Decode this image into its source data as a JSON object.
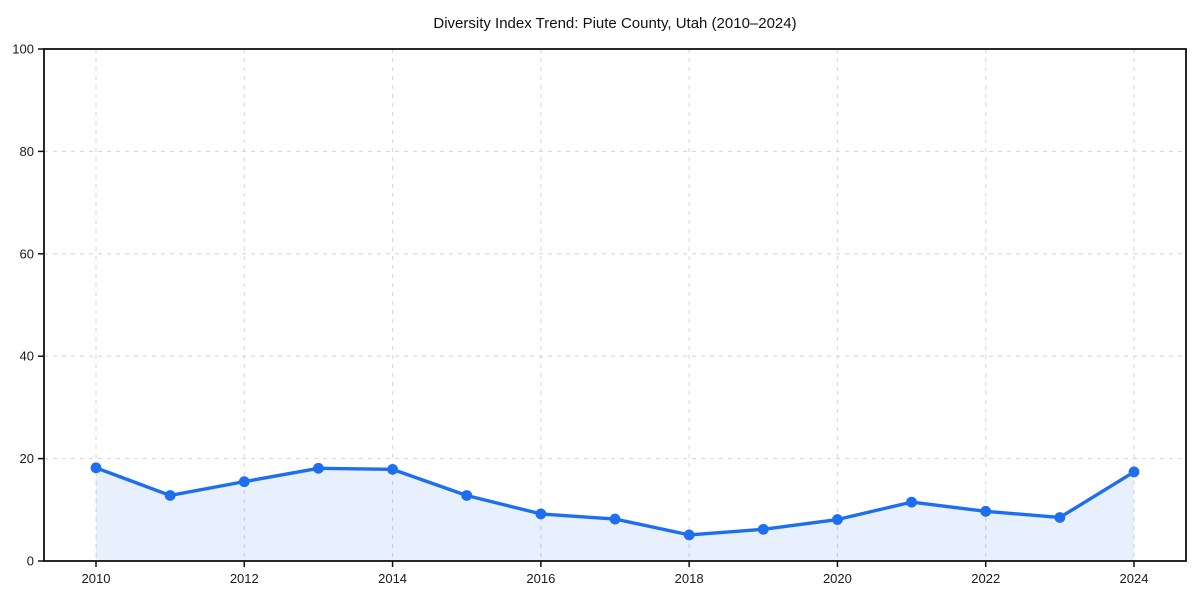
{
  "page": {
    "background": "#ffffff"
  },
  "chart_data": {
    "type": "line",
    "title": "Diversity Index Trend: Piute County, Utah (2010–2024)",
    "x": [
      2010,
      2011,
      2012,
      2013,
      2014,
      2015,
      2016,
      2017,
      2018,
      2019,
      2020,
      2021,
      2022,
      2023,
      2024
    ],
    "series": [
      {
        "name": "Diversity Index",
        "values": [
          18.2,
          12.8,
          15.5,
          18.1,
          17.9,
          12.8,
          9.2,
          8.2,
          5.1,
          6.2,
          8.1,
          11.5,
          9.7,
          8.5,
          17.4
        ]
      }
    ],
    "xlabel": "",
    "ylabel": "",
    "ylim": [
      0,
      100
    ],
    "xticks": [
      2010,
      2012,
      2014,
      2016,
      2018,
      2020,
      2022,
      2024
    ],
    "yticks": [
      0,
      20,
      40,
      60,
      80,
      100
    ],
    "grid": true,
    "grid_style": "dashed",
    "legend": "none",
    "marker": "circle",
    "colors": {
      "line": "#1e6ff0",
      "marker": "#1e6ff0",
      "area_fill": "rgba(30,111,240,0.10)",
      "gridline": "#d9d9d9",
      "spine": "#111111",
      "tick_label": "#1a1a1a",
      "title": "#111111"
    }
  }
}
